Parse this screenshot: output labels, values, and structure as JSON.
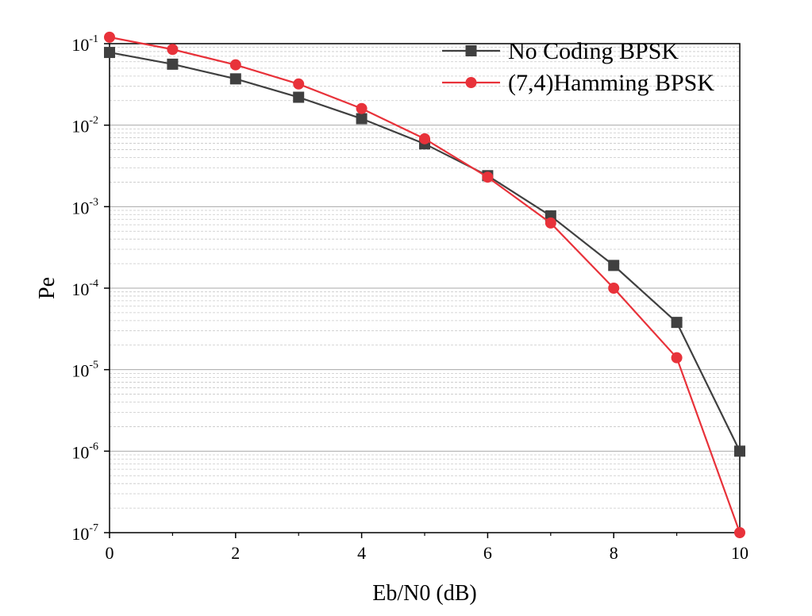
{
  "chart_data": {
    "type": "line",
    "title": "",
    "xlabel": "Eb/N0 (dB)",
    "ylabel": "Pe",
    "yscale": "log",
    "xlim": [
      0,
      10
    ],
    "ylim": [
      1e-07,
      0.1
    ],
    "x_ticks": [
      "0",
      "2",
      "4",
      "6",
      "8",
      "10"
    ],
    "y_ticks": [
      {
        "base": "10",
        "exp": "-1"
      },
      {
        "base": "10",
        "exp": "-2"
      },
      {
        "base": "10",
        "exp": "-3"
      },
      {
        "base": "10",
        "exp": "-4"
      },
      {
        "base": "10",
        "exp": "-5"
      },
      {
        "base": "10",
        "exp": "-6"
      },
      {
        "base": "10",
        "exp": "-7"
      }
    ],
    "grid": "major and minor horizontal",
    "legend_position": "top-right",
    "x": [
      0,
      1,
      2,
      3,
      4,
      5,
      6,
      7,
      8,
      9,
      10
    ],
    "series": [
      {
        "name": "No Coding BPSK",
        "color": "#404040",
        "marker": "square",
        "values": [
          0.078,
          0.056,
          0.037,
          0.022,
          0.012,
          0.0059,
          0.0024,
          0.00077,
          0.00019,
          3.8e-05,
          1e-06
        ]
      },
      {
        "name": "(7,4)Hamming BPSK",
        "color": "#e8323a",
        "marker": "circle",
        "values": [
          0.12,
          0.085,
          0.055,
          0.032,
          0.016,
          0.0068,
          0.0023,
          0.00063,
          0.0001,
          1.4e-05,
          1e-07
        ]
      }
    ]
  }
}
